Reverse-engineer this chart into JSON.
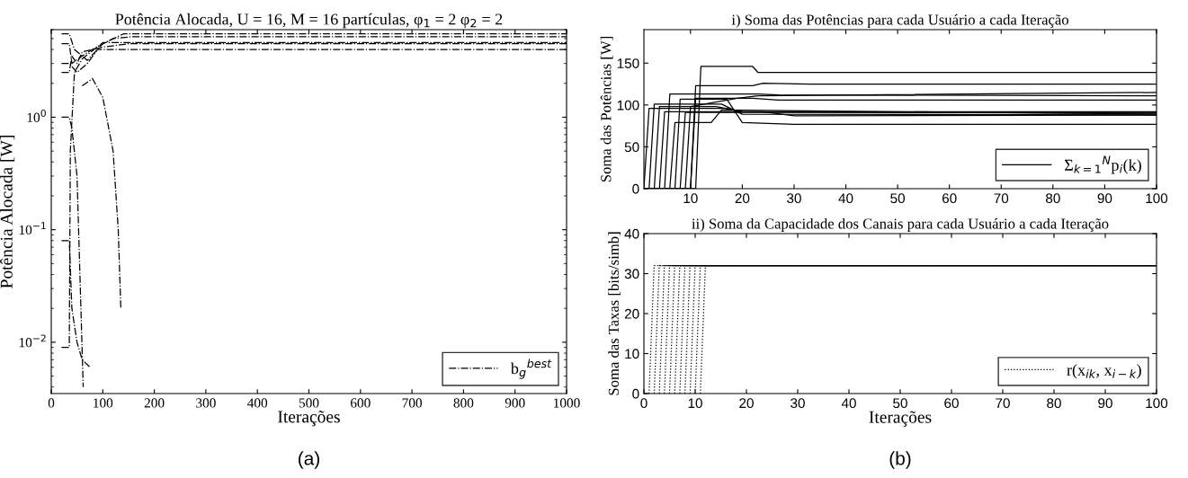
{
  "chart_data": [
    {
      "type": "line",
      "title": "Potência Alocada, U = 16, M = 16 partículas, φ$_{1}$ = 2 φ$_{2}$ = 2",
      "xlabel": "Iterações",
      "ylabel": "Potência Alocada [W]",
      "annotations": [
        "(a)"
      ],
      "log": "y",
      "xlim": [
        0,
        1000
      ],
      "xticks": [
        0,
        100,
        200,
        300,
        400,
        500,
        600,
        700,
        800,
        900,
        1000
      ],
      "ylim": [
        0.0035,
        6
      ],
      "yticks": [
        {
          "value": 0.01,
          "label": "10$^{−2}$"
        },
        {
          "value": 0.1,
          "label": "10$^{−1}$"
        },
        {
          "value": 1,
          "label": "10$^{0}$"
        }
      ],
      "legend": "bottom right",
      "line_style": "dashdot",
      "grid": false,
      "series": [
        {
          "name": "b$_{g}$$^{best}$",
          "color": "#000000",
          "x": [
            20,
            35,
            40,
            50,
            55,
            62
          ],
          "values": [
            1.0,
            1.0,
            0.8,
            0.3,
            0.05,
            0.004
          ]
        },
        {
          "color": "#000000",
          "x": [
            60,
            80,
            100,
            120,
            130,
            135
          ],
          "values": [
            1.9,
            2.2,
            1.5,
            0.5,
            0.1,
            0.02
          ]
        },
        {
          "color": "#000000",
          "x": [
            20,
            35,
            40,
            50,
            60,
            100,
            150,
            1000
          ],
          "values": [
            2.5,
            2.5,
            3.5,
            3.0,
            3.8,
            4.2,
            4.5,
            4.5
          ]
        },
        {
          "color": "#000000",
          "x": [
            20,
            35,
            40,
            60,
            80,
            120,
            160,
            1000
          ],
          "values": [
            4.5,
            4.5,
            3.0,
            3.5,
            4.0,
            5.0,
            5.2,
            5.2
          ]
        },
        {
          "color": "#000000",
          "x": [
            20,
            35,
            45,
            70,
            100,
            140,
            1000
          ],
          "values": [
            5.5,
            5.5,
            4.0,
            3.2,
            4.5,
            5.5,
            5.5
          ]
        },
        {
          "color": "#000000",
          "x": [
            20,
            35,
            50,
            70,
            90,
            130,
            1000
          ],
          "values": [
            3.0,
            3.0,
            2.5,
            3.0,
            4.0,
            4.0,
            4.0
          ]
        },
        {
          "color": "#000000",
          "x": [
            20,
            35,
            37,
            45,
            60,
            100,
            1000
          ],
          "values": [
            0.009,
            0.009,
            0.5,
            2.5,
            3.3,
            4.6,
            4.6
          ]
        },
        {
          "color": "#000000",
          "x": [
            20,
            35,
            40,
            50,
            60,
            75
          ],
          "values": [
            0.08,
            0.08,
            0.02,
            0.01,
            0.007,
            0.006
          ]
        }
      ]
    },
    {
      "type": "line",
      "title": "i) Soma das Potências para cada Usuário a cada Iteração",
      "ylabel": "Soma das Potências [W]",
      "xlim": [
        1,
        100
      ],
      "xticks": [
        10,
        20,
        30,
        40,
        50,
        60,
        70,
        80,
        90,
        100
      ],
      "ylim": [
        0,
        190
      ],
      "yticks": [
        0,
        50,
        100,
        150
      ],
      "legend": "bottom right",
      "line_style": "solid",
      "grid": false,
      "series": [
        {
          "name": "Σ$_{k=1}$$^{N}$p$_{i}$(k)",
          "color": "#000000",
          "x": [
            1,
            2,
            17,
            20,
            100
          ],
          "values": [
            0,
            96,
            96,
            92,
            90
          ]
        },
        {
          "color": "#000000",
          "x": [
            1,
            2,
            3,
            16,
            20,
            100
          ],
          "values": [
            0,
            0,
            101,
            101,
            89,
            88
          ]
        },
        {
          "color": "#000000",
          "x": [
            1,
            3,
            4,
            15,
            20,
            100
          ],
          "values": [
            0,
            0,
            98,
            98,
            92,
            92
          ]
        },
        {
          "color": "#000000",
          "x": [
            1,
            4,
            5,
            24,
            30,
            100
          ],
          "values": [
            0,
            0,
            92,
            92,
            87,
            88
          ]
        },
        {
          "color": "#000000",
          "x": [
            1,
            5,
            6,
            23,
            27,
            100
          ],
          "values": [
            0,
            0,
            113,
            113,
            112,
            111
          ]
        },
        {
          "color": "#000000",
          "x": [
            1,
            6,
            7,
            14,
            16,
            100
          ],
          "values": [
            0,
            0,
            79,
            79,
            94,
            89
          ]
        },
        {
          "color": "#000000",
          "x": [
            1,
            7,
            8,
            17,
            20,
            30,
            100
          ],
          "values": [
            0,
            0,
            107,
            107,
            79,
            77,
            77
          ]
        },
        {
          "color": "#000000",
          "x": [
            1,
            8,
            9,
            100
          ],
          "values": [
            0,
            0,
            91,
            91
          ]
        },
        {
          "color": "#000000",
          "x": [
            1,
            9,
            10,
            19,
            23,
            100
          ],
          "values": [
            0,
            0,
            98,
            108,
            111,
            115
          ]
        },
        {
          "color": "#000000",
          "x": [
            1,
            10,
            11,
            22,
            24,
            33,
            100
          ],
          "values": [
            0,
            0,
            123,
            123,
            126,
            125,
            125
          ]
        },
        {
          "color": "#000000",
          "x": [
            1,
            10,
            11,
            18,
            22,
            27,
            100
          ],
          "values": [
            0,
            0,
            108,
            108,
            108,
            106,
            106
          ]
        },
        {
          "color": "#000000",
          "x": [
            1,
            11,
            12,
            22,
            23,
            100
          ],
          "values": [
            0,
            0,
            146,
            146,
            139,
            139
          ]
        }
      ]
    },
    {
      "type": "line",
      "title": "ii) Soma da Capacidade dos Canais para cada Usuário a cada Iteração",
      "xlabel": "Iterações",
      "ylabel": "Soma das Taxas [bits/simb]",
      "annotations": [
        "(b)"
      ],
      "xlim": [
        0,
        100
      ],
      "xticks": [
        0,
        10,
        20,
        30,
        40,
        50,
        60,
        70,
        80,
        90,
        100
      ],
      "ylim": [
        0,
        40
      ],
      "yticks": [
        0,
        10,
        20,
        30,
        40
      ],
      "legend": "bottom right",
      "line_style": "dotted",
      "grid": false,
      "series": [
        {
          "name": "r(x$_{ik}$, x$_{i−k}$)",
          "color": "#000000",
          "x": [
            1,
            2,
            100
          ],
          "values": [
            0,
            32,
            32
          ]
        },
        {
          "color": "#000000",
          "x": [
            2,
            3,
            100
          ],
          "values": [
            0,
            32,
            32
          ]
        },
        {
          "color": "#000000",
          "x": [
            3,
            4,
            100
          ],
          "values": [
            0,
            32,
            32
          ]
        },
        {
          "color": "#000000",
          "x": [
            4,
            5,
            100
          ],
          "values": [
            0,
            32,
            32
          ]
        },
        {
          "color": "#000000",
          "x": [
            5,
            6,
            100
          ],
          "values": [
            0,
            32,
            32
          ]
        },
        {
          "color": "#000000",
          "x": [
            6,
            7,
            100
          ],
          "values": [
            0,
            32,
            32
          ]
        },
        {
          "color": "#000000",
          "x": [
            7,
            8,
            100
          ],
          "values": [
            0,
            32,
            32
          ]
        },
        {
          "color": "#000000",
          "x": [
            8,
            9,
            100
          ],
          "values": [
            0,
            32,
            32
          ]
        },
        {
          "color": "#000000",
          "x": [
            9,
            10,
            100
          ],
          "values": [
            0,
            32,
            32
          ]
        },
        {
          "color": "#000000",
          "x": [
            10,
            11,
            100
          ],
          "values": [
            0,
            32,
            32
          ]
        },
        {
          "color": "#000000",
          "x": [
            11,
            12,
            100
          ],
          "values": [
            0,
            32,
            32
          ]
        }
      ]
    }
  ]
}
